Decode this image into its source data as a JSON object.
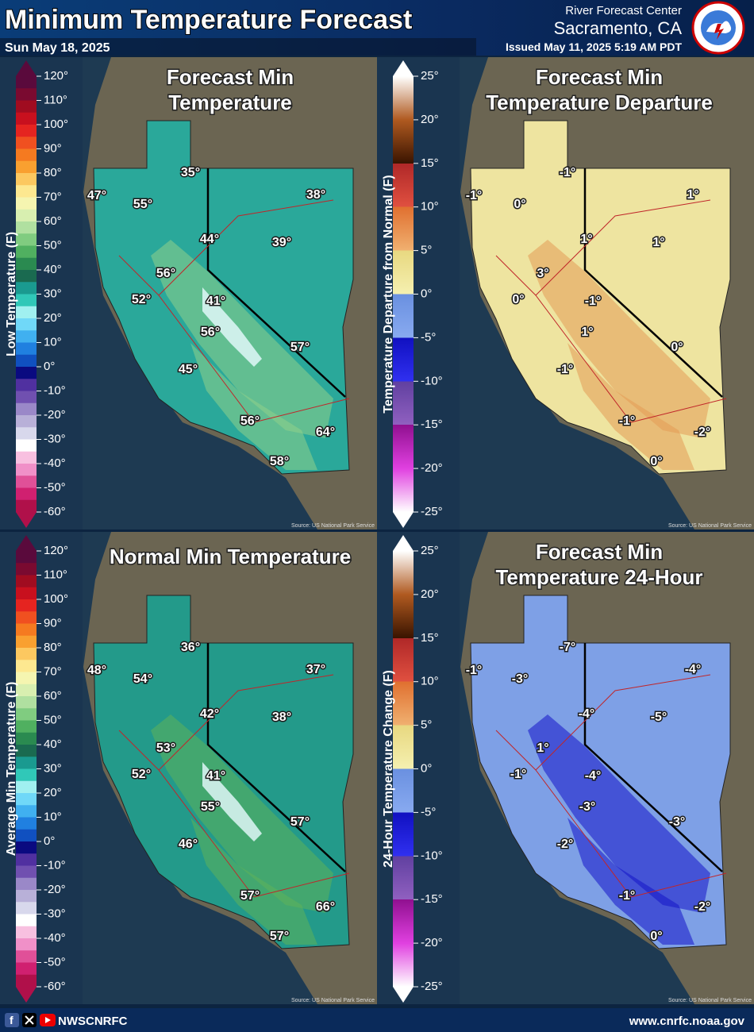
{
  "header": {
    "title": "Minimum Temperature Forecast",
    "date": "Sun May 18, 2025",
    "office": "River Forecast Center",
    "location": "Sacramento, CA",
    "issued": "Issued May 11, 2025 5:19 AM PDT"
  },
  "panels": [
    {
      "title_lines": [
        "Forecast Min",
        "Temperature"
      ],
      "legend_title": "Low Temperature (F)",
      "legend_ticks": [
        "120°",
        "110°",
        "100°",
        "90°",
        "80°",
        "70°",
        "60°",
        "50°",
        "40°",
        "30°",
        "20°",
        "10°",
        "0°",
        "-10°",
        "-20°",
        "-30°",
        "-40°",
        "-50°",
        "-60°"
      ],
      "labels": [
        "47°",
        "35°",
        "55°",
        "38°",
        "44°",
        "39°",
        "56°",
        "52°",
        "41°",
        "56°",
        "57°",
        "45°",
        "56°",
        "64°",
        "58°"
      ],
      "source": "Source: US National Park Service"
    },
    {
      "title_lines": [
        "Forecast Min",
        "Temperature Departure"
      ],
      "legend_title": "Temperature Departure from Normal (F)",
      "legend_ticks": [
        "25°",
        "20°",
        "15°",
        "10°",
        "5°",
        "0°",
        "-5°",
        "-10°",
        "-15°",
        "-20°",
        "-25°"
      ],
      "labels": [
        "-1°",
        "-1°",
        "0°",
        "1°",
        "1°",
        "1°",
        "3°",
        "0°",
        "-1°",
        "1°",
        "0°",
        "-1°",
        "-1°",
        "-2°",
        "0°"
      ],
      "source": "Source: US National Park Service"
    },
    {
      "title_lines": [
        "Normal Min Temperature"
      ],
      "legend_title": "Average Min Temperature (F)",
      "legend_ticks": [
        "120°",
        "110°",
        "100°",
        "90°",
        "80°",
        "70°",
        "60°",
        "50°",
        "40°",
        "30°",
        "20°",
        "10°",
        "0°",
        "-10°",
        "-20°",
        "-30°",
        "-40°",
        "-50°",
        "-60°"
      ],
      "labels": [
        "48°",
        "36°",
        "54°",
        "37°",
        "42°",
        "38°",
        "53°",
        "52°",
        "41°",
        "55°",
        "57°",
        "46°",
        "57°",
        "66°",
        "57°"
      ],
      "source": "Source: US National Park Service"
    },
    {
      "title_lines": [
        "Forecast Min",
        "Temperature 24-Hour"
      ],
      "legend_title": "24-Hour Temperature Change (F)",
      "legend_ticks": [
        "25°",
        "20°",
        "15°",
        "10°",
        "5°",
        "0°",
        "-5°",
        "-10°",
        "-15°",
        "-20°",
        "-25°"
      ],
      "labels": [
        "-1°",
        "-7°",
        "-3°",
        "-4°",
        "-4°",
        "-5°",
        "1°",
        "-1°",
        "-4°",
        "-3°",
        "-3°",
        "-2°",
        "-1°",
        "-2°",
        "0°"
      ],
      "source": "Source: US National Park Service"
    }
  ],
  "footer": {
    "handle": "NWSCNRFC",
    "url": "www.cnrfc.noaa.gov"
  }
}
